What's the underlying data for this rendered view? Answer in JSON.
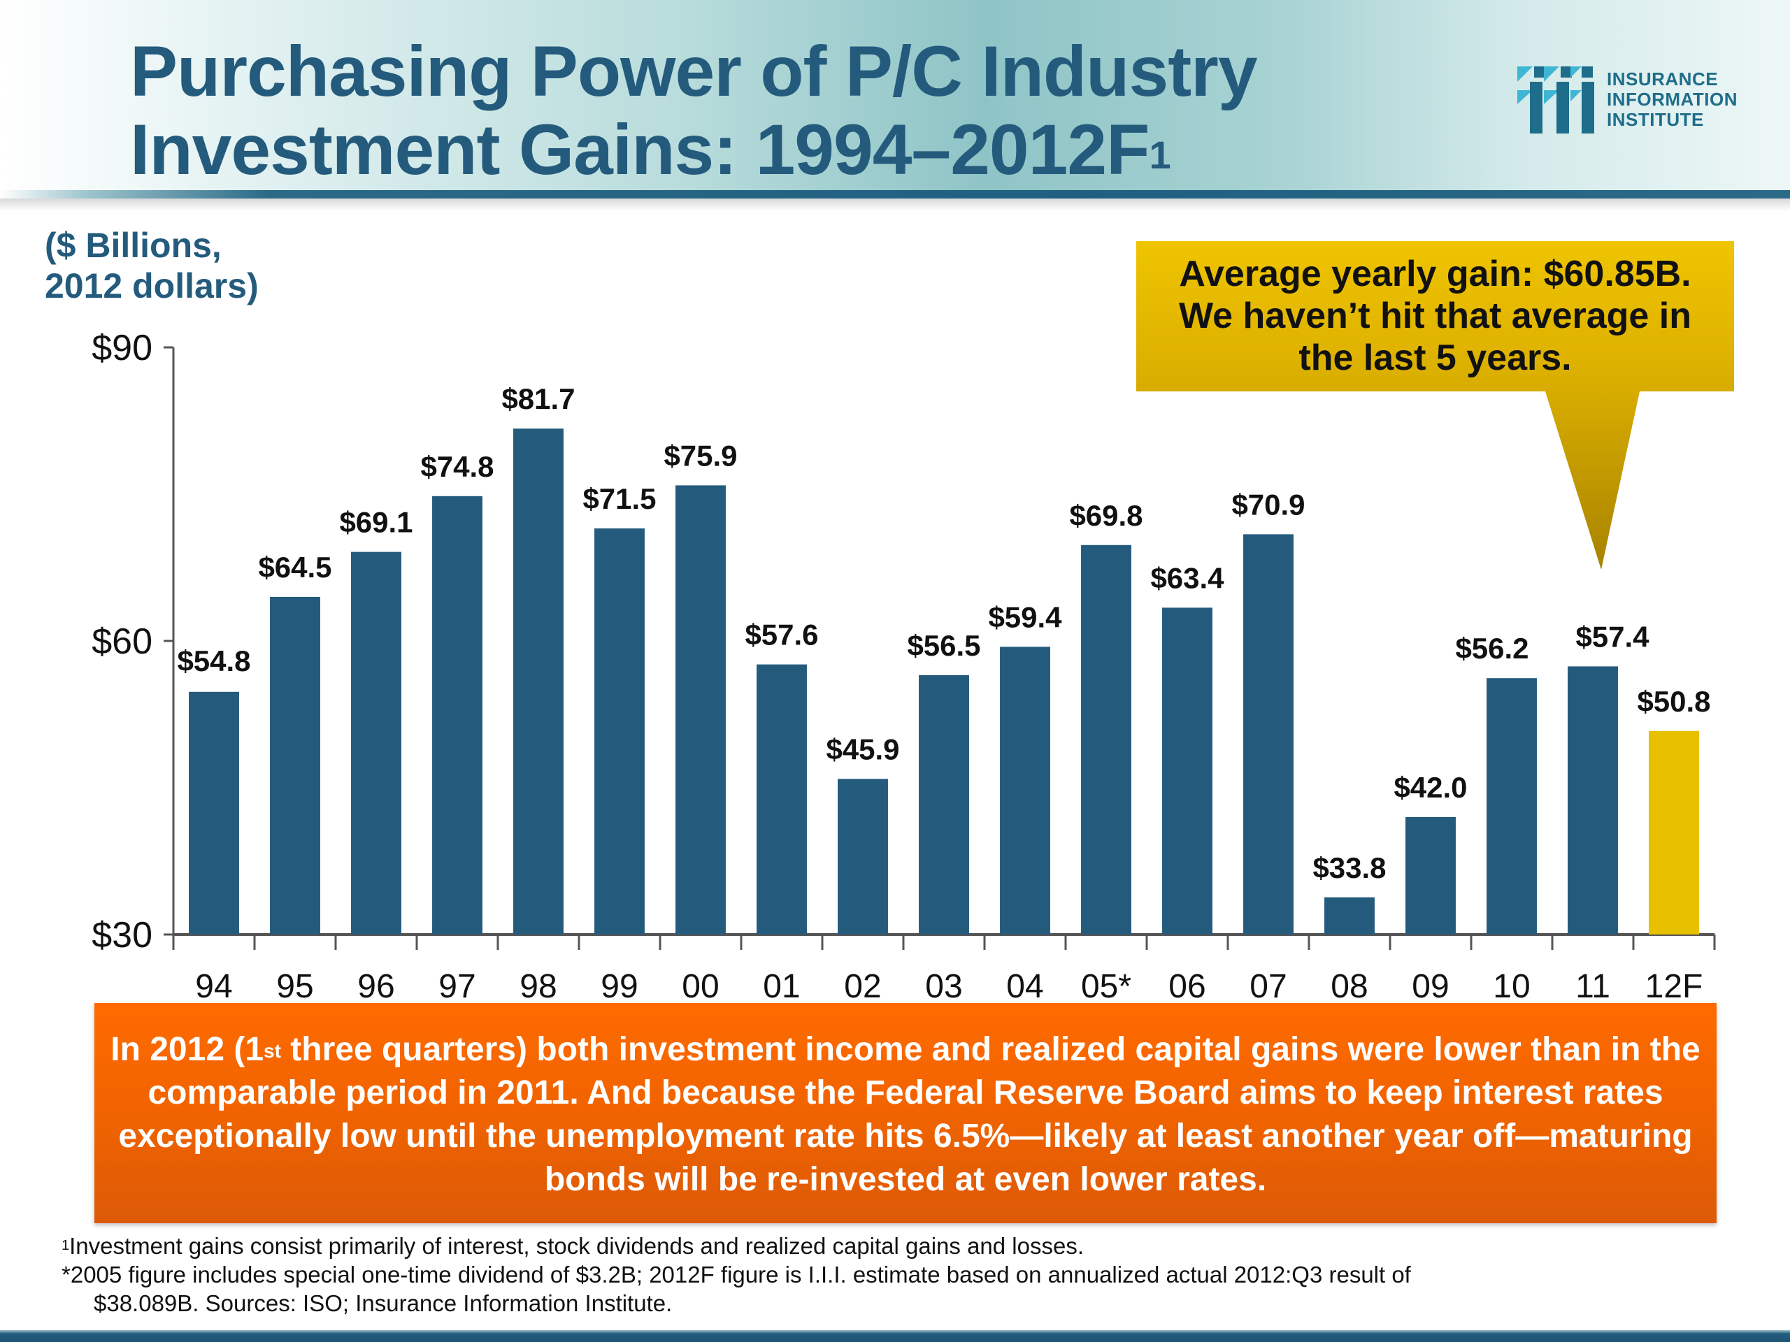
{
  "header": {
    "title_line1": "Purchasing Power of P/C Industry",
    "title_line2": "Investment Gains: 1994–2012F",
    "title_superscript": "1"
  },
  "logo": {
    "icon": "iii-logo-icon",
    "line1": "INSURANCE",
    "line2": "INFORMATION",
    "line3": "INSTITUTE"
  },
  "units_label": {
    "line1": "($ Billions,",
    "line2": "2012 dollars)"
  },
  "callout": {
    "line1": "Average yearly gain: $60.85B.",
    "line2": "We haven’t hit that average in",
    "line3": "the last 5 years."
  },
  "note_box": {
    "part1": "In 2012 (1",
    "superscript": "st",
    "part2": " three quarters) both investment income and realized capital gains were lower than in the comparable period in 2011. And because the Federal Reserve Board aims to keep interest rates exceptionally low until the unemployment rate hits 6.5%—likely at least another year off—maturing bonds will be re-invested at even lower rates."
  },
  "footnotes": {
    "note1_marker": "1",
    "note1": "Investment gains consist primarily of interest, stock dividends and realized capital gains and losses.",
    "note2_line1": "*2005 figure includes special one-time dividend of $3.2B; 2012F figure is I.I.I. estimate based on annualized actual 2012:Q3 result of",
    "note2_line2": "$38.089B. Sources: ISO; Insurance Information Institute."
  },
  "colors": {
    "bar": "#245b7d",
    "forecast_bar": "#e8c000",
    "title": "#245b7d",
    "callout": "#d4a900",
    "note_box": "#f06300"
  },
  "chart_data": {
    "type": "bar",
    "title": "Purchasing Power of P/C Industry Investment Gains: 1994–2012F",
    "xlabel": "",
    "ylabel": "($ Billions, 2012 dollars)",
    "ylim": [
      30,
      90
    ],
    "yticks": [
      30,
      60,
      90
    ],
    "ytick_labels": [
      "$30",
      "$60",
      "$90"
    ],
    "grid": false,
    "legend": "none",
    "categories": [
      "94",
      "95",
      "96",
      "97",
      "98",
      "99",
      "00",
      "01",
      "02",
      "03",
      "04",
      "05*",
      "06",
      "07",
      "08",
      "09",
      "10",
      "11",
      "12F"
    ],
    "values": [
      54.8,
      64.5,
      69.1,
      74.8,
      81.7,
      71.5,
      75.9,
      57.6,
      45.9,
      56.5,
      59.4,
      69.8,
      63.4,
      70.9,
      33.8,
      42.0,
      56.2,
      57.4,
      50.8
    ],
    "data_labels": [
      "$54.8",
      "$64.5",
      "$69.1",
      "$74.8",
      "$81.7",
      "$71.5",
      "$75.9",
      "$57.6",
      "$45.9",
      "$56.5",
      "$59.4",
      "$69.8",
      "$63.4",
      "$70.9",
      "$33.8",
      "$42.0",
      "$56.2",
      "$57.4",
      "$50.8"
    ],
    "highlight": {
      "category": "12F",
      "note": "forecast"
    },
    "annotations": [
      "Average yearly gain: $60.85B. We haven’t hit that average in the last 5 years."
    ]
  }
}
